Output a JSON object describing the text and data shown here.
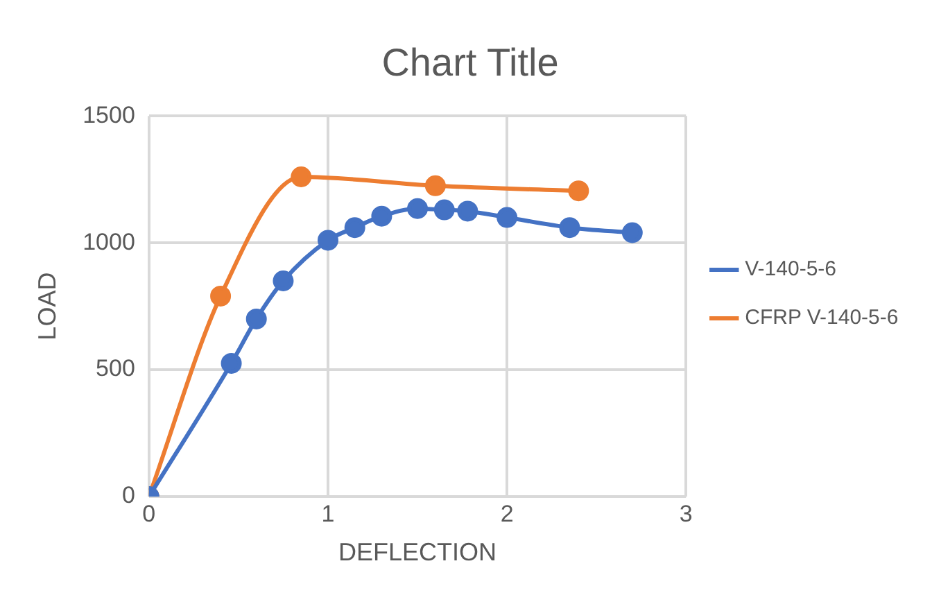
{
  "chart_data": {
    "type": "line",
    "title": "Chart Title",
    "xlabel": "DEFLECTION",
    "ylabel": "LOAD",
    "xlim": [
      0,
      3
    ],
    "xticks": [
      0,
      1,
      2,
      3
    ],
    "ylim": [
      0,
      1500
    ],
    "yticks": [
      0,
      500,
      1000,
      1500
    ],
    "grid": true,
    "legend": "right",
    "marker": "circle",
    "line_style": "solid",
    "series": [
      {
        "name": "V-140-5-6",
        "color": "#4472c4",
        "x": [
          0,
          0.46,
          0.6,
          0.75,
          1.0,
          1.15,
          1.3,
          1.5,
          1.65,
          1.78,
          2.0,
          2.35,
          2.7
        ],
        "values": [
          0,
          525,
          700,
          850,
          1010,
          1060,
          1105,
          1135,
          1130,
          1125,
          1100,
          1060,
          1040
        ]
      },
      {
        "name": "CFRP V-140-5-6",
        "color": "#ed7d31",
        "x": [
          0,
          0.4,
          0.85,
          1.6,
          2.4
        ],
        "values": [
          0,
          790,
          1260,
          1225,
          1205
        ]
      }
    ]
  }
}
